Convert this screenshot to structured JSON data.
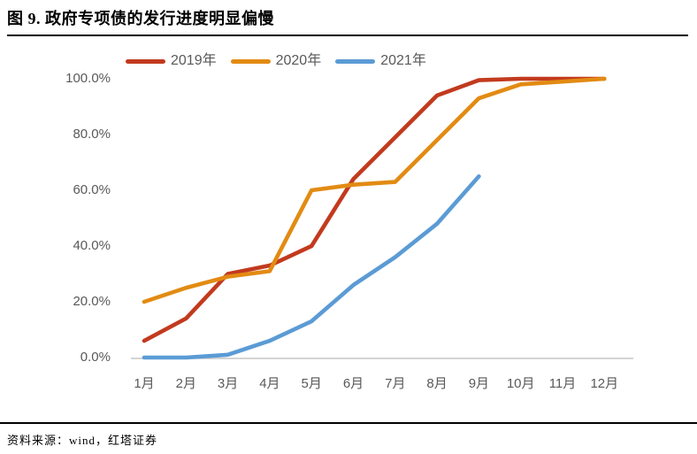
{
  "header": {
    "title": "图 9. 政府专项债的发行进度明显偏慢"
  },
  "footer": {
    "source": "资料来源：wind，红塔证券"
  },
  "colors": {
    "series_2019": "#C23A1E",
    "series_2020": "#E28B13",
    "series_2021": "#5B9BD5",
    "axis_text": "#595959",
    "axis_line": "#C6C6C6"
  },
  "chart_data": {
    "type": "line",
    "title": "图 9. 政府专项债的发行进度明显偏慢",
    "categories": [
      "1月",
      "2月",
      "3月",
      "4月",
      "5月",
      "6月",
      "7月",
      "8月",
      "9月",
      "10月",
      "11月",
      "12月"
    ],
    "y_ticks": [
      "100.0%",
      "80.0%",
      "60.0%",
      "40.0%",
      "20.0%",
      "0.0%"
    ],
    "ylim": [
      0,
      100
    ],
    "unit": "percent",
    "grid": false,
    "legend_position": "top",
    "series": [
      {
        "name": "2019年",
        "color": "#C23A1E",
        "values": [
          6,
          14,
          30,
          33,
          40,
          64,
          79,
          94,
          99.5,
          100,
          100,
          100
        ]
      },
      {
        "name": "2020年",
        "color": "#E28B13",
        "values": [
          20,
          25,
          29,
          31,
          60,
          62,
          63,
          78,
          93,
          98,
          99,
          100
        ]
      },
      {
        "name": "2021年",
        "color": "#5B9BD5",
        "values": [
          0,
          0,
          1,
          6,
          13,
          26,
          36,
          48,
          65
        ]
      }
    ]
  }
}
